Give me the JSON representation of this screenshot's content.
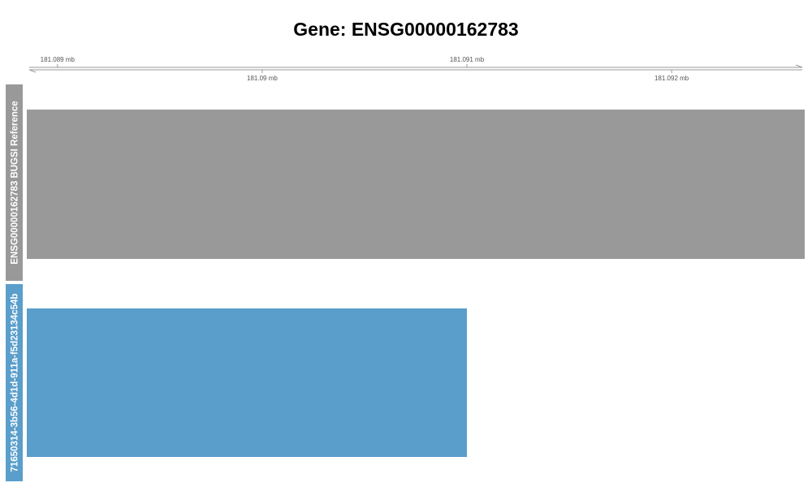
{
  "chart_data": {
    "type": "bar",
    "title": "Gene: ENSG00000162783",
    "x_unit": "mb",
    "x_range": [
      181.08885,
      181.09265
    ],
    "x_ticks_top": [
      {
        "value": 181.089,
        "label": "181.089 mb"
      },
      {
        "value": 181.091,
        "label": "181.091 mb"
      }
    ],
    "x_ticks_bottom": [
      {
        "value": 181.09,
        "label": "181.09 mb"
      },
      {
        "value": 181.092,
        "label": "181.092 mb"
      }
    ],
    "tracks": [
      {
        "name": "ENSG00000162783 BUGSI Reference",
        "color": "#999999",
        "start": 181.08885,
        "end": 181.09265
      },
      {
        "name": "71650314-3b56-4d1d-911a-f5d23134c54b",
        "color": "#5a9ecb",
        "start": 181.08885,
        "end": 181.091
      }
    ],
    "axis_color": "#999999",
    "grid": false
  }
}
